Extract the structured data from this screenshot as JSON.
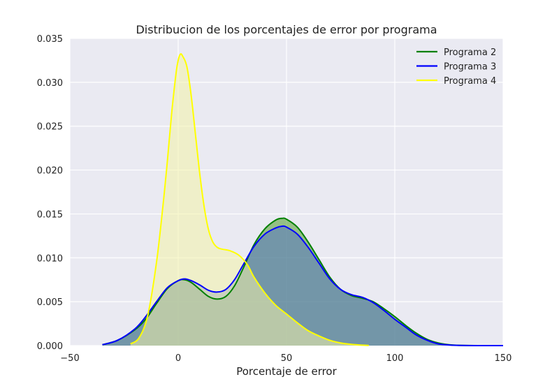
{
  "chart_data": {
    "type": "line",
    "title": "Distribucion de los porcentajes de error por programa",
    "xlabel": "Porcentaje de error",
    "ylabel": "",
    "xlim": [
      -50,
      150
    ],
    "ylim": [
      0,
      0.035
    ],
    "xticks": [
      -50,
      0,
      50,
      100,
      150
    ],
    "xtick_labels": [
      "−50",
      "0",
      "50",
      "100",
      "150"
    ],
    "yticks": [
      0,
      0.005,
      0.01,
      0.015,
      0.02,
      0.025,
      0.03,
      0.035
    ],
    "ytick_labels": [
      "0.000",
      "0.005",
      "0.010",
      "0.015",
      "0.020",
      "0.025",
      "0.030",
      "0.035"
    ],
    "grid": true,
    "legend_position": "top-right",
    "background": "#eaeaf2",
    "series": [
      {
        "name": "Programa 2",
        "color": "#008000",
        "fill": "#4c9a2a",
        "x": [
          -35,
          -28,
          -20,
          -15,
          -10,
          -5,
          0,
          3,
          6,
          10,
          14,
          18,
          22,
          26,
          30,
          35,
          40,
          45,
          48,
          50,
          55,
          60,
          65,
          70,
          75,
          80,
          85,
          90,
          95,
          100,
          105,
          110,
          115,
          120,
          125,
          130,
          140,
          150
        ],
        "y": [
          0.0001,
          0.0006,
          0.0018,
          0.003,
          0.0048,
          0.0065,
          0.0074,
          0.0075,
          0.0072,
          0.0064,
          0.0056,
          0.0053,
          0.0056,
          0.0068,
          0.0088,
          0.0115,
          0.0133,
          0.0143,
          0.0145,
          0.0144,
          0.0135,
          0.0118,
          0.0098,
          0.0078,
          0.0064,
          0.0057,
          0.0054,
          0.005,
          0.0042,
          0.0033,
          0.0023,
          0.0014,
          0.0007,
          0.0003,
          0.0001,
          3e-05,
          0.0,
          0.0
        ]
      },
      {
        "name": "Programa 3",
        "color": "#0000ff",
        "fill": "#5874c6",
        "x": [
          -35,
          -28,
          -20,
          -15,
          -10,
          -5,
          0,
          3,
          6,
          10,
          14,
          18,
          22,
          26,
          30,
          35,
          40,
          45,
          48,
          50,
          55,
          60,
          65,
          70,
          75,
          80,
          85,
          90,
          95,
          100,
          105,
          110,
          115,
          120,
          125,
          130,
          140,
          150
        ],
        "y": [
          0.0001,
          0.0006,
          0.0019,
          0.0033,
          0.005,
          0.0066,
          0.0074,
          0.0076,
          0.0074,
          0.0069,
          0.0063,
          0.0061,
          0.0064,
          0.0075,
          0.0092,
          0.0113,
          0.0127,
          0.0134,
          0.0136,
          0.0135,
          0.0127,
          0.0112,
          0.0094,
          0.0076,
          0.0064,
          0.0058,
          0.0055,
          0.0049,
          0.004,
          0.003,
          0.0021,
          0.0012,
          0.0006,
          0.0002,
          7e-05,
          2e-05,
          0.0,
          0.0
        ]
      },
      {
        "name": "Programa 4",
        "color": "#ffff00",
        "fill": "#f3f3a8",
        "x": [
          -22,
          -18,
          -14,
          -10,
          -7,
          -5,
          -3,
          -1,
          0,
          1,
          2,
          4,
          6,
          8,
          10,
          12,
          14,
          16,
          18,
          20,
          24,
          28,
          32,
          35,
          40,
          45,
          50,
          55,
          60,
          65,
          70,
          75,
          80,
          85,
          88
        ],
        "y": [
          0.0002,
          0.0009,
          0.0035,
          0.0095,
          0.016,
          0.021,
          0.0265,
          0.031,
          0.0325,
          0.0332,
          0.033,
          0.0318,
          0.0285,
          0.024,
          0.0195,
          0.0158,
          0.0132,
          0.0118,
          0.0112,
          0.011,
          0.0108,
          0.0103,
          0.0092,
          0.0078,
          0.006,
          0.0046,
          0.0036,
          0.0026,
          0.0017,
          0.0011,
          0.0006,
          0.0003,
          0.00014,
          5e-05,
          2e-05
        ]
      }
    ]
  }
}
